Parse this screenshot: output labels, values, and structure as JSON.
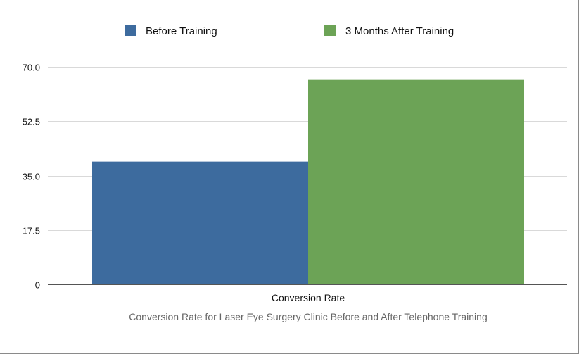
{
  "chart_data": {
    "type": "bar",
    "categories": [
      "Conversion Rate"
    ],
    "series": [
      {
        "name": "Before Training",
        "values": [
          39.5
        ],
        "color": "#3d6b9e"
      },
      {
        "name": "3 Months After Training",
        "values": [
          66
        ],
        "color": "#6ca356"
      }
    ],
    "yticks": [
      "0",
      "17.5",
      "35.0",
      "52.5",
      "70.0"
    ],
    "ylim": [
      0,
      70
    ],
    "xlabel": "Conversion Rate for Laser Eye Surgery Clinic Before and After Telephone Training",
    "ylabel": "",
    "grid": true,
    "legend_position": "top"
  }
}
